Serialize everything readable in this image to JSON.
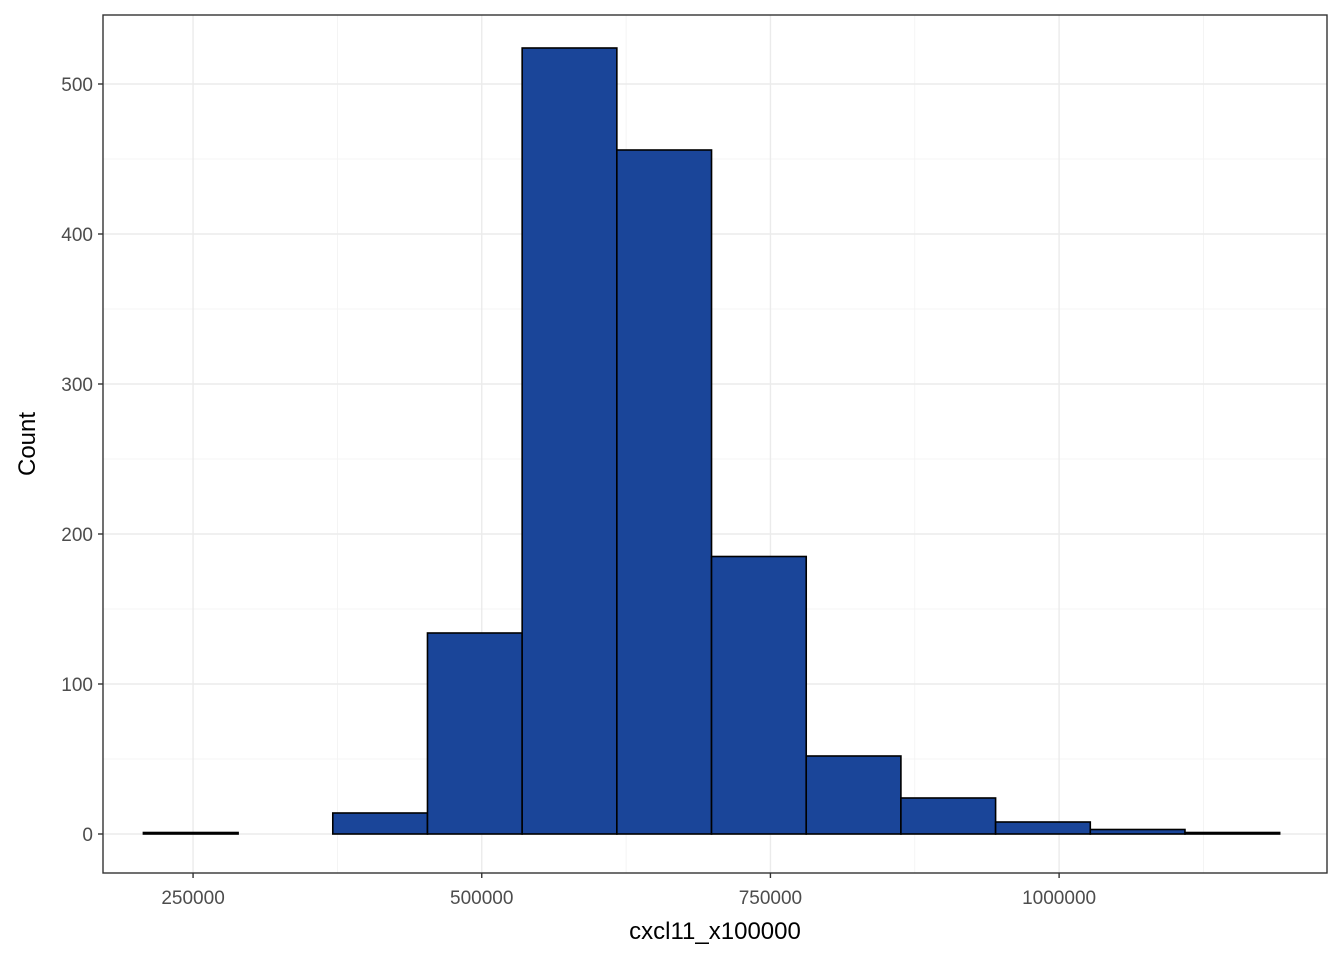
{
  "chart_data": {
    "type": "bar",
    "subtype": "histogram",
    "title": "",
    "xlabel": "cxcl11_x100000",
    "ylabel": "Count",
    "bar_color": "#1A4599",
    "bar_outline": "#000000",
    "grid": true,
    "theme": "bw",
    "xlim": [
      172000,
      1232000
    ],
    "ylim": [
      -26,
      546
    ],
    "x_ticks": [
      {
        "value": 250000,
        "label": "250000"
      },
      {
        "value": 500000,
        "label": "500000"
      },
      {
        "value": 750000,
        "label": "750000"
      },
      {
        "value": 1000000,
        "label": "1000000"
      }
    ],
    "y_ticks": [
      {
        "value": 0,
        "label": "0"
      },
      {
        "value": 100,
        "label": "100"
      },
      {
        "value": 200,
        "label": "200"
      },
      {
        "value": 300,
        "label": "300"
      },
      {
        "value": 400,
        "label": "400"
      },
      {
        "value": 500,
        "label": "500"
      }
    ],
    "bins": [
      {
        "start": 207000,
        "end": 289000,
        "count": 1
      },
      {
        "start": 289000,
        "end": 371000,
        "count": 0
      },
      {
        "start": 371000,
        "end": 453000,
        "count": 14
      },
      {
        "start": 453000,
        "end": 535000,
        "count": 134
      },
      {
        "start": 535000,
        "end": 617000,
        "count": 524
      },
      {
        "start": 617000,
        "end": 699000,
        "count": 456
      },
      {
        "start": 699000,
        "end": 781000,
        "count": 185
      },
      {
        "start": 781000,
        "end": 863000,
        "count": 52
      },
      {
        "start": 863000,
        "end": 945000,
        "count": 24
      },
      {
        "start": 945000,
        "end": 1027000,
        "count": 8
      },
      {
        "start": 1027000,
        "end": 1109000,
        "count": 3
      },
      {
        "start": 1109000,
        "end": 1191000,
        "count": 1
      }
    ]
  }
}
